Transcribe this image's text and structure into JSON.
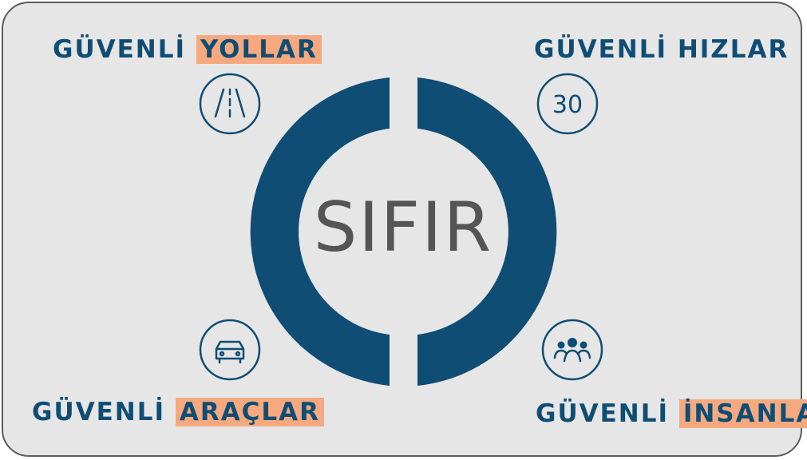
{
  "center": {
    "text": "SIFIR"
  },
  "quadrants": {
    "top_left": {
      "prefix": "GÜVENLİ",
      "highlight": "YOLLAR",
      "icon": "road-icon"
    },
    "top_right": {
      "prefix": "GÜVENLİ",
      "text": "HIZLAR",
      "icon": "speed-limit-icon",
      "icon_number": "30"
    },
    "bottom_left": {
      "prefix": "GÜVENLİ",
      "highlight": "ARAÇLAR",
      "icon": "car-icon"
    },
    "bottom_right": {
      "prefix": "GÜVENLİ",
      "highlight": "İNSANLAR",
      "icon": "people-icon"
    }
  },
  "colors": {
    "primary": "#0f4d75",
    "highlight": "#f6a97f",
    "center_text": "#555555",
    "background": "#e6e6e6",
    "border": "#5b5b5b"
  }
}
